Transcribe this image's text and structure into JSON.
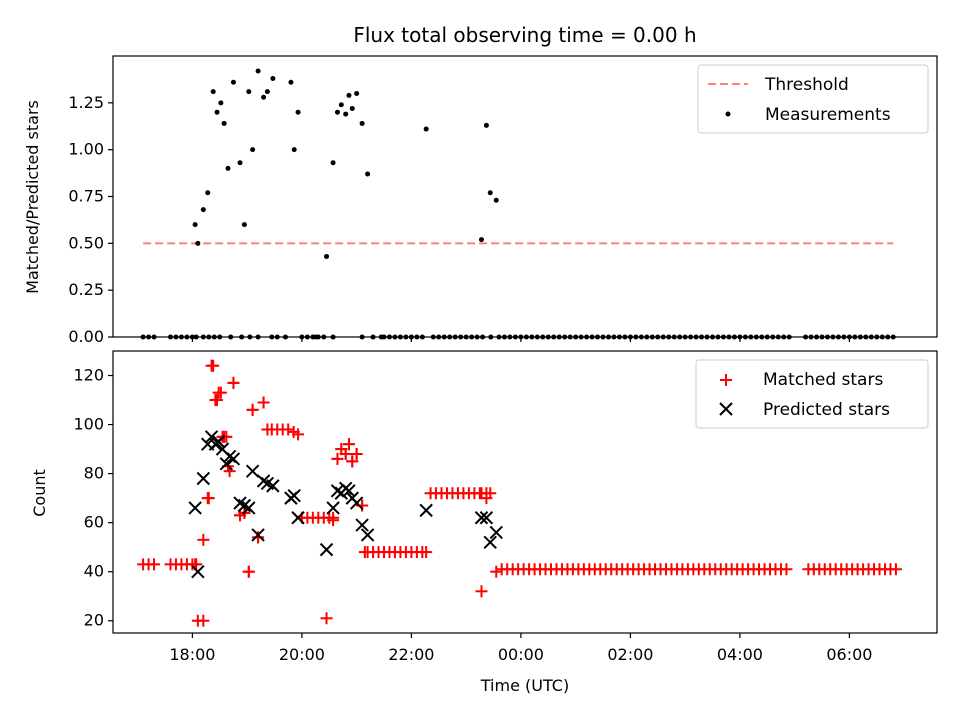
{
  "chart_data": [
    {
      "type": "scatter",
      "title": "Flux total observing time = 0.00 h",
      "xlabel": "",
      "ylabel": "Matched/Predicted stars",
      "xlim": [
        16.55,
        31.6
      ],
      "ylim": [
        0,
        1.5
      ],
      "yticks": [
        0.0,
        0.25,
        0.5,
        0.75,
        1.0,
        1.25
      ],
      "ytick_labels": [
        "0.00",
        "0.25",
        "0.50",
        "0.75",
        "1.00",
        "1.25"
      ],
      "legend": {
        "position": "top-right",
        "entries": [
          "Threshold",
          "Measurements"
        ]
      },
      "threshold": {
        "name": "Threshold",
        "value": 0.5,
        "x_start": 17.1,
        "x_end": 30.8,
        "color": "#ff7f7f"
      },
      "series": [
        {
          "name": "Measurements",
          "color": "#000000",
          "x": [
            17.1,
            17.2,
            17.3,
            17.6,
            17.7,
            17.8,
            17.9,
            18.0,
            18.07,
            18.2,
            18.3,
            18.4,
            18.5,
            18.7,
            18.9,
            19.05,
            19.2,
            19.45,
            19.55,
            19.7,
            20.0,
            20.1,
            20.2,
            20.25,
            20.3,
            20.4,
            20.57,
            21.1,
            21.3,
            21.45,
            21.5,
            21.6,
            21.7,
            21.8,
            21.9,
            22.0,
            22.1,
            22.2,
            22.4,
            22.5,
            22.6,
            22.7,
            22.8,
            22.9,
            23.0,
            23.1,
            23.2,
            23.3,
            23.45,
            23.6,
            23.7,
            23.8,
            23.9,
            24.0,
            24.1,
            24.2,
            24.3,
            24.4,
            24.5,
            24.6,
            24.7,
            24.8,
            24.9,
            25.0,
            25.1,
            25.2,
            25.3,
            25.4,
            25.5,
            25.6,
            25.7,
            25.8,
            25.9,
            26.0,
            26.1,
            26.2,
            26.3,
            26.4,
            26.5,
            26.6,
            26.7,
            26.8,
            26.9,
            27.0,
            27.1,
            27.2,
            27.3,
            27.4,
            27.5,
            27.6,
            27.7,
            27.8,
            27.9,
            28.0,
            28.1,
            28.2,
            28.3,
            28.4,
            28.5,
            28.6,
            28.7,
            28.8,
            28.9,
            29.2,
            29.3,
            29.4,
            29.5,
            29.6,
            29.7,
            29.8,
            29.9,
            30.0,
            30.1,
            30.2,
            30.3,
            30.4,
            30.5,
            30.6,
            30.7,
            30.8,
            18.05,
            18.1,
            18.2,
            18.28,
            18.38,
            18.45,
            18.52,
            18.58,
            18.65,
            18.75,
            18.87,
            18.95,
            19.03,
            19.1,
            19.2,
            19.3,
            19.37,
            19.47,
            19.8,
            19.86,
            19.93,
            20.45,
            20.57,
            20.65,
            20.72,
            20.8,
            20.86,
            20.92,
            21.0,
            21.1,
            21.2,
            22.27,
            23.28,
            23.37,
            23.44,
            23.55
          ],
          "y": [
            0,
            0,
            0,
            0,
            0,
            0,
            0,
            0,
            0,
            0,
            0,
            0,
            0,
            0,
            0,
            0,
            0,
            0,
            0,
            0,
            0,
            0,
            0,
            0,
            0,
            0,
            0,
            0,
            0,
            0,
            0,
            0,
            0,
            0,
            0,
            0,
            0,
            0,
            0,
            0,
            0,
            0,
            0,
            0,
            0,
            0,
            0,
            0,
            0,
            0,
            0,
            0,
            0,
            0,
            0,
            0,
            0,
            0,
            0,
            0,
            0,
            0,
            0,
            0,
            0,
            0,
            0,
            0,
            0,
            0,
            0,
            0,
            0,
            0,
            0,
            0,
            0,
            0,
            0,
            0,
            0,
            0,
            0,
            0,
            0,
            0,
            0,
            0,
            0,
            0,
            0,
            0,
            0,
            0,
            0,
            0,
            0,
            0,
            0,
            0,
            0,
            0,
            0,
            0,
            0,
            0,
            0,
            0,
            0,
            0,
            0,
            0,
            0,
            0,
            0,
            0,
            0,
            0,
            0,
            0,
            0.6,
            0.5,
            0.68,
            0.77,
            1.31,
            1.2,
            1.25,
            1.14,
            0.9,
            1.36,
            0.93,
            0.6,
            1.31,
            1.0,
            1.42,
            1.28,
            1.31,
            1.38,
            1.36,
            1.0,
            1.2,
            0.43,
            0.93,
            1.2,
            1.24,
            1.19,
            1.29,
            1.22,
            1.3,
            1.14,
            0.87,
            1.11,
            0.52,
            1.13,
            0.77,
            0.73
          ]
        }
      ]
    },
    {
      "type": "scatter",
      "title": "",
      "xlabel": "Time (UTC)",
      "ylabel": "Count",
      "xlim": [
        16.55,
        31.6
      ],
      "ylim": [
        15,
        130
      ],
      "yticks": [
        20,
        40,
        60,
        80,
        100,
        120
      ],
      "ytick_labels": [
        "20",
        "40",
        "60",
        "80",
        "100",
        "120"
      ],
      "xticks": [
        18,
        20,
        22,
        24,
        26,
        28,
        30
      ],
      "xtick_labels": [
        "18:00",
        "20:00",
        "22:00",
        "00:00",
        "02:00",
        "04:00",
        "06:00"
      ],
      "legend": {
        "position": "top-right",
        "entries": [
          "Matched stars",
          "Predicted stars"
        ]
      },
      "series": [
        {
          "name": "Matched stars",
          "marker": "plus",
          "color": "#ff0000",
          "x": [
            17.1,
            17.2,
            17.3,
            17.6,
            17.7,
            17.8,
            17.9,
            18.0,
            18.07,
            18.2,
            18.28,
            18.35,
            18.42,
            18.48,
            18.55,
            18.62,
            18.68,
            18.75,
            18.87,
            18.95,
            19.03,
            19.1,
            19.2,
            19.3,
            19.37,
            19.45,
            19.55,
            19.65,
            19.75,
            19.85,
            19.93,
            20.0,
            20.1,
            20.2,
            20.3,
            20.4,
            20.5,
            20.57,
            20.65,
            20.72,
            20.8,
            20.86,
            20.92,
            21.0,
            21.1,
            21.15,
            21.3,
            21.4,
            21.5,
            21.6,
            21.7,
            21.8,
            21.9,
            22.0,
            22.1,
            22.2,
            22.27,
            22.35,
            22.45,
            22.55,
            22.65,
            22.75,
            22.85,
            22.95,
            23.05,
            23.15,
            23.25,
            23.28,
            23.37,
            23.44,
            23.55,
            23.65,
            23.75,
            23.85,
            23.95,
            24.05,
            24.15,
            24.25,
            24.35,
            24.45,
            24.55,
            24.65,
            24.75,
            24.85,
            24.95,
            25.05,
            25.15,
            25.25,
            25.35,
            25.45,
            25.55,
            25.65,
            25.75,
            25.85,
            25.95,
            26.05,
            26.15,
            26.25,
            26.35,
            26.45,
            26.55,
            26.65,
            26.75,
            26.85,
            26.95,
            27.05,
            27.15,
            27.25,
            27.35,
            27.45,
            27.55,
            27.65,
            27.75,
            27.85,
            27.95,
            28.05,
            28.15,
            28.25,
            28.35,
            28.45,
            28.55,
            28.65,
            28.75,
            28.85,
            29.25,
            29.35,
            29.45,
            29.55,
            29.65,
            29.75,
            29.85,
            29.95,
            30.05,
            30.15,
            30.25,
            30.35,
            30.45,
            30.55,
            30.65,
            30.75,
            30.85,
            18.05,
            18.1,
            18.2,
            18.3,
            18.38,
            18.45,
            18.52,
            18.58,
            18.65,
            18.75,
            18.87,
            18.95,
            19.03,
            19.1,
            19.2,
            19.3,
            20.45,
            20.57,
            20.65,
            20.72,
            20.8,
            20.86,
            20.92,
            21.0,
            21.1,
            21.2,
            23.28,
            23.37
          ],
          "y": [
            43,
            43,
            43,
            43,
            43,
            43,
            43,
            43,
            43,
            20,
            70,
            124,
            110,
            113,
            95,
            95,
            81,
            117,
            63,
            64,
            40,
            106,
            54,
            109,
            98,
            98,
            98,
            98,
            98,
            97,
            96,
            62,
            62,
            62,
            62,
            62,
            62,
            62,
            86,
            90,
            88,
            92,
            85,
            88,
            67,
            48,
            48,
            48,
            48,
            48,
            48,
            48,
            48,
            48,
            48,
            48,
            48,
            72,
            72,
            72,
            72,
            72,
            72,
            72,
            72,
            72,
            72,
            72,
            72,
            72,
            40,
            41,
            41,
            41,
            41,
            41,
            41,
            41,
            41,
            41,
            41,
            41,
            41,
            41,
            41,
            41,
            41,
            41,
            41,
            41,
            41,
            41,
            41,
            41,
            41,
            41,
            41,
            41,
            41,
            41,
            41,
            41,
            41,
            41,
            41,
            41,
            41,
            41,
            41,
            41,
            41,
            41,
            41,
            41,
            41,
            41,
            41,
            41,
            41,
            41,
            41,
            41,
            41,
            41,
            41,
            41,
            41,
            41,
            41,
            41,
            41,
            41,
            41,
            41,
            41,
            41,
            41,
            41,
            41,
            41,
            41,
            43,
            20,
            53,
            70,
            124,
            110,
            113,
            95,
            83,
            117,
            63,
            64,
            40,
            106,
            54,
            109,
            21,
            61,
            86,
            90,
            88,
            92,
            85,
            88,
            67,
            48,
            32,
            70
          ]
        },
        {
          "name": "Predicted stars",
          "marker": "x",
          "color": "#000000",
          "x": [
            18.05,
            18.1,
            18.2,
            18.28,
            18.35,
            18.42,
            18.48,
            18.55,
            18.62,
            18.68,
            18.75,
            18.87,
            18.95,
            19.03,
            19.1,
            19.2,
            19.3,
            19.37,
            19.47,
            19.8,
            19.86,
            19.93,
            20.45,
            20.57,
            20.65,
            20.72,
            20.8,
            20.86,
            20.92,
            21.0,
            21.1,
            21.2,
            22.27,
            23.28,
            23.37,
            23.44,
            23.55
          ],
          "y": [
            66,
            40,
            78,
            92,
            95,
            92,
            93,
            90,
            84,
            87,
            86,
            68,
            67,
            66,
            81,
            55,
            77,
            76,
            75,
            70,
            71,
            62,
            49,
            66,
            73,
            72,
            74,
            73,
            70,
            68,
            59,
            55,
            65,
            62,
            62,
            52,
            56
          ]
        }
      ]
    }
  ]
}
